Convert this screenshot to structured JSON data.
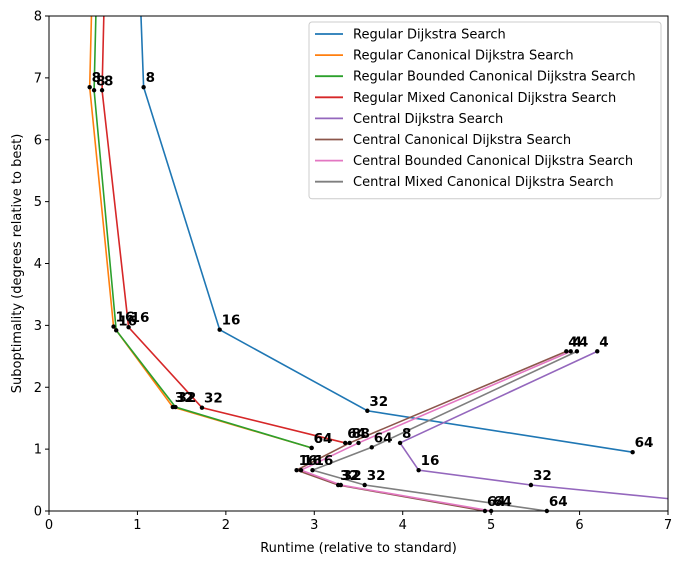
{
  "chart_data": {
    "type": "line",
    "title": "",
    "xlabel": "Runtime (relative to standard)",
    "ylabel": "Suboptimality (degrees relative to best)",
    "xlim": [
      0,
      7
    ],
    "ylim": [
      0,
      8
    ],
    "xticks": [
      "0",
      "1",
      "2",
      "3",
      "4",
      "5",
      "6",
      "7"
    ],
    "yticks": [
      "0",
      "1",
      "2",
      "3",
      "4",
      "5",
      "6",
      "7",
      "8"
    ],
    "grid": false,
    "legend_position": "top-right",
    "series": [
      {
        "name": "Regular Dijkstra Search",
        "color": "#1f77b4",
        "points": [
          {
            "x": 1.04,
            "y": 8.0,
            "label": ""
          },
          {
            "x": 1.07,
            "y": 6.85,
            "label": "8"
          },
          {
            "x": 1.93,
            "y": 2.93,
            "label": "16"
          },
          {
            "x": 3.6,
            "y": 1.62,
            "label": "32"
          },
          {
            "x": 6.6,
            "y": 0.95,
            "label": "64"
          }
        ]
      },
      {
        "name": "Regular Canonical Dijkstra Search",
        "color": "#ff7f0e",
        "points": [
          {
            "x": 0.48,
            "y": 8.0,
            "label": ""
          },
          {
            "x": 0.46,
            "y": 6.85,
            "label": "8"
          },
          {
            "x": 0.73,
            "y": 2.98,
            "label": "16"
          },
          {
            "x": 1.4,
            "y": 1.68,
            "label": "32"
          },
          {
            "x": 2.97,
            "y": 1.02,
            "label": "64"
          }
        ]
      },
      {
        "name": "Regular Bounded Canonical Dijkstra Search",
        "color": "#2ca02c",
        "points": [
          {
            "x": 0.53,
            "y": 8.0,
            "label": ""
          },
          {
            "x": 0.51,
            "y": 6.8,
            "label": "8"
          },
          {
            "x": 0.76,
            "y": 2.92,
            "label": "16"
          },
          {
            "x": 1.43,
            "y": 1.68,
            "label": "32"
          },
          {
            "x": 2.97,
            "y": 1.02,
            "label": "64"
          }
        ]
      },
      {
        "name": "Regular Mixed Canonical Dijkstra Search",
        "color": "#d62728",
        "points": [
          {
            "x": 0.62,
            "y": 8.0,
            "label": ""
          },
          {
            "x": 0.6,
            "y": 6.8,
            "label": "8"
          },
          {
            "x": 0.9,
            "y": 2.97,
            "label": "16"
          },
          {
            "x": 1.73,
            "y": 1.67,
            "label": "32"
          },
          {
            "x": 3.35,
            "y": 1.1,
            "label": "64"
          }
        ]
      },
      {
        "name": "Central Dijkstra Search",
        "color": "#9467bd",
        "points": [
          {
            "x": 6.2,
            "y": 2.58,
            "label": "4"
          },
          {
            "x": 3.97,
            "y": 1.1,
            "label": "8"
          },
          {
            "x": 4.18,
            "y": 0.66,
            "label": "16"
          },
          {
            "x": 5.45,
            "y": 0.42,
            "label": "32"
          },
          {
            "x": 7.0,
            "y": 0.2,
            "label": ""
          }
        ]
      },
      {
        "name": "Central Canonical Dijkstra Search",
        "color": "#8c564b",
        "points": [
          {
            "x": 5.85,
            "y": 2.58,
            "label": "4"
          },
          {
            "x": 3.4,
            "y": 1.1,
            "label": "8"
          },
          {
            "x": 2.8,
            "y": 0.66,
            "label": "16"
          },
          {
            "x": 3.27,
            "y": 0.42,
            "label": "32"
          },
          {
            "x": 4.93,
            "y": 0.0,
            "label": "64"
          }
        ]
      },
      {
        "name": "Central Bounded Canonical Dijkstra Search",
        "color": "#e377c2",
        "points": [
          {
            "x": 5.9,
            "y": 2.58,
            "label": "4"
          },
          {
            "x": 3.5,
            "y": 1.1,
            "label": "8"
          },
          {
            "x": 2.85,
            "y": 0.66,
            "label": "16"
          },
          {
            "x": 3.3,
            "y": 0.42,
            "label": "32"
          },
          {
            "x": 5.0,
            "y": 0.0,
            "label": "64"
          }
        ]
      },
      {
        "name": "Central Mixed Canonical Dijkstra Search",
        "color": "#7f7f7f",
        "points": [
          {
            "x": 5.97,
            "y": 2.58,
            "label": "4"
          },
          {
            "x": 3.65,
            "y": 1.03,
            "label": "64"
          },
          {
            "x": 2.98,
            "y": 0.66,
            "label": "16"
          },
          {
            "x": 3.57,
            "y": 0.42,
            "label": "32"
          },
          {
            "x": 5.63,
            "y": 0.0,
            "label": "64"
          }
        ]
      }
    ]
  }
}
